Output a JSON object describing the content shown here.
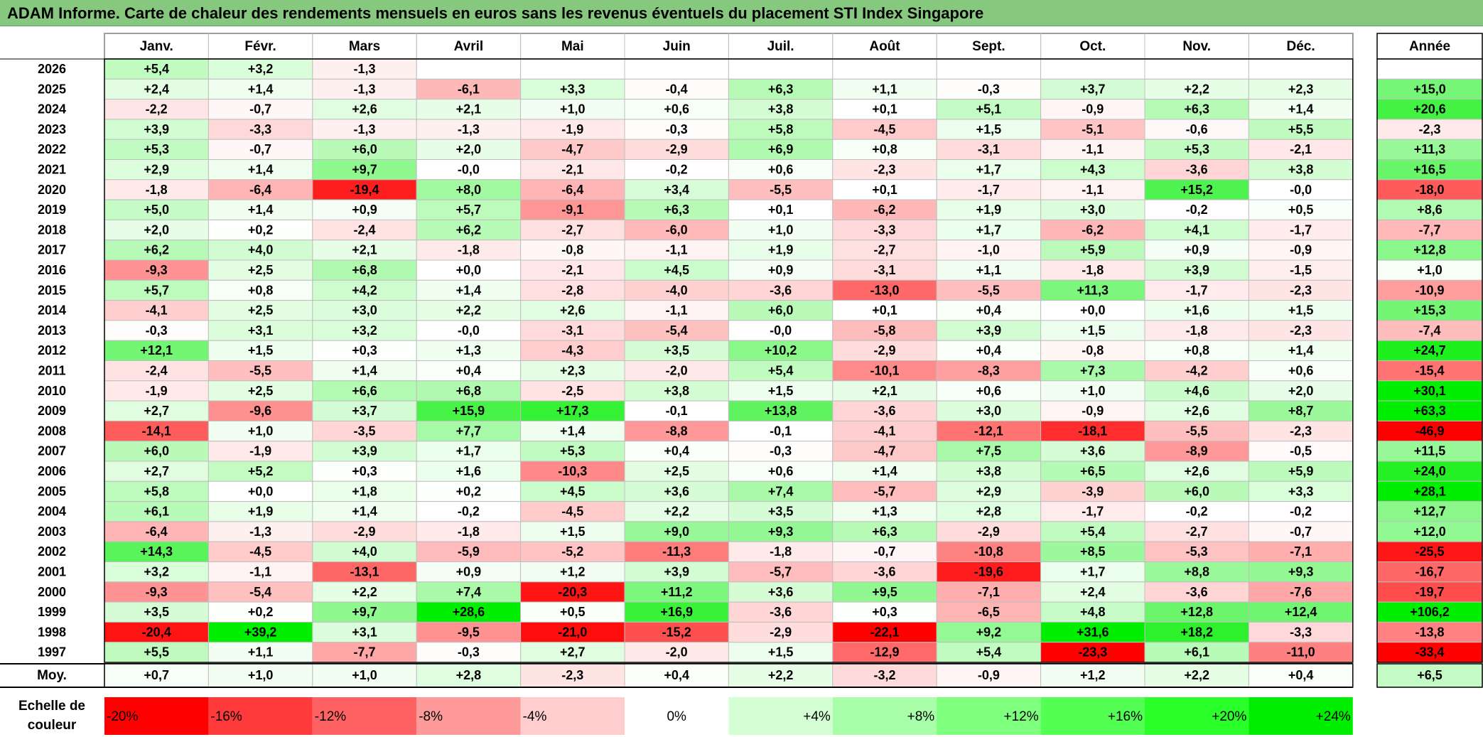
{
  "title": "ADAM Informe. Carte de chaleur des rendements mensuels en euros sans les revenus éventuels du placement STI Index Singapore",
  "chart_data": {
    "type": "heatmap",
    "title": "ADAM Informe. Carte de chaleur des rendements mensuels en euros sans les revenus éventuels du placement STI Index Singapore",
    "months": [
      "Janv.",
      "Févr.",
      "Mars",
      "Avril",
      "Mai",
      "Juin",
      "Juil.",
      "Août",
      "Sept.",
      "Oct.",
      "Nov.",
      "Déc."
    ],
    "year_header": "Année",
    "rows": [
      {
        "year": "2026",
        "values": [
          5.4,
          3.2,
          -1.3,
          null,
          null,
          null,
          null,
          null,
          null,
          null,
          null,
          null
        ],
        "annual": null
      },
      {
        "year": "2025",
        "values": [
          2.4,
          1.4,
          -1.3,
          -6.1,
          3.3,
          -0.4,
          6.3,
          1.1,
          -0.3,
          3.7,
          2.2,
          2.3
        ],
        "annual": 15.0
      },
      {
        "year": "2024",
        "values": [
          -2.2,
          -0.7,
          2.6,
          2.1,
          1.0,
          0.6,
          3.8,
          0.1,
          5.1,
          -0.9,
          6.3,
          1.4
        ],
        "annual": 20.6
      },
      {
        "year": "2023",
        "values": [
          3.9,
          -3.3,
          -1.3,
          -1.3,
          -1.9,
          -0.3,
          5.8,
          -4.5,
          1.5,
          -5.1,
          -0.6,
          5.5
        ],
        "annual": -2.3
      },
      {
        "year": "2022",
        "values": [
          5.3,
          -0.7,
          6.0,
          2.0,
          -4.7,
          -2.9,
          6.9,
          0.8,
          -3.1,
          -1.1,
          5.3,
          -2.1
        ],
        "annual": 11.3
      },
      {
        "year": "2021",
        "values": [
          2.9,
          1.4,
          9.7,
          -0.0,
          -2.1,
          -0.2,
          0.6,
          -2.3,
          1.7,
          4.3,
          -3.6,
          3.8
        ],
        "annual": 16.5
      },
      {
        "year": "2020",
        "values": [
          -1.8,
          -6.4,
          -19.4,
          8.0,
          -6.4,
          3.4,
          -5.5,
          0.1,
          -1.7,
          -1.1,
          15.2,
          -0.0
        ],
        "annual": -18.0
      },
      {
        "year": "2019",
        "values": [
          5.0,
          1.4,
          0.9,
          5.7,
          -9.1,
          6.3,
          0.1,
          -6.2,
          1.9,
          3.0,
          -0.2,
          0.5
        ],
        "annual": 8.6
      },
      {
        "year": "2018",
        "values": [
          2.0,
          0.2,
          -2.4,
          6.2,
          -2.7,
          -6.0,
          1.0,
          -3.3,
          1.7,
          -6.2,
          4.1,
          -1.7
        ],
        "annual": -7.7
      },
      {
        "year": "2017",
        "values": [
          6.2,
          4.0,
          2.1,
          -1.8,
          -0.8,
          -1.1,
          1.9,
          -2.7,
          -1.0,
          5.9,
          0.9,
          -0.9
        ],
        "annual": 12.8
      },
      {
        "year": "2016",
        "values": [
          -9.3,
          2.5,
          6.8,
          0.0,
          -2.1,
          4.5,
          0.9,
          -3.1,
          1.1,
          -1.8,
          3.9,
          -1.5
        ],
        "annual": 1.0
      },
      {
        "year": "2015",
        "values": [
          5.7,
          0.8,
          4.2,
          1.4,
          -2.8,
          -4.0,
          -3.6,
          -13.0,
          -5.5,
          11.3,
          -1.7,
          -2.3
        ],
        "annual": -10.9
      },
      {
        "year": "2014",
        "values": [
          -4.1,
          2.5,
          3.0,
          2.2,
          2.6,
          -1.1,
          6.0,
          0.1,
          0.4,
          0.0,
          1.6,
          1.5
        ],
        "annual": 15.3
      },
      {
        "year": "2013",
        "values": [
          -0.3,
          3.1,
          3.2,
          -0.0,
          -3.1,
          -5.4,
          -0.0,
          -5.8,
          3.9,
          1.5,
          -1.8,
          -2.3
        ],
        "annual": -7.4
      },
      {
        "year": "2012",
        "values": [
          12.1,
          1.5,
          0.3,
          1.3,
          -4.3,
          3.5,
          10.2,
          -2.9,
          0.4,
          -0.8,
          0.8,
          1.4
        ],
        "annual": 24.7
      },
      {
        "year": "2011",
        "values": [
          -2.4,
          -5.5,
          1.4,
          0.4,
          2.3,
          -2.0,
          5.4,
          -10.1,
          -8.3,
          7.3,
          -4.2,
          0.6
        ],
        "annual": -15.4
      },
      {
        "year": "2010",
        "values": [
          -1.9,
          2.5,
          6.6,
          6.8,
          -2.5,
          3.8,
          1.5,
          2.1,
          0.6,
          1.0,
          4.6,
          2.0
        ],
        "annual": 30.1
      },
      {
        "year": "2009",
        "values": [
          2.7,
          -9.6,
          3.7,
          15.9,
          17.3,
          -0.1,
          13.8,
          -3.6,
          3.0,
          -0.9,
          2.6,
          8.7
        ],
        "annual": 63.3
      },
      {
        "year": "2008",
        "values": [
          -14.1,
          1.0,
          -3.5,
          7.7,
          1.4,
          -8.8,
          -0.1,
          -4.1,
          -12.1,
          -18.1,
          -5.5,
          -2.3
        ],
        "annual": -46.9
      },
      {
        "year": "2007",
        "values": [
          6.0,
          -1.9,
          3.9,
          1.7,
          5.3,
          0.4,
          -0.3,
          -4.7,
          7.5,
          3.6,
          -8.9,
          -0.5
        ],
        "annual": 11.5
      },
      {
        "year": "2006",
        "values": [
          2.7,
          5.2,
          0.3,
          1.6,
          -10.3,
          2.5,
          0.6,
          1.4,
          3.8,
          6.5,
          2.6,
          5.9
        ],
        "annual": 24.0
      },
      {
        "year": "2005",
        "values": [
          5.8,
          0.0,
          1.8,
          0.2,
          4.5,
          3.6,
          7.4,
          -5.7,
          2.9,
          -3.9,
          6.0,
          3.3
        ],
        "annual": 28.1
      },
      {
        "year": "2004",
        "values": [
          6.1,
          1.9,
          1.4,
          -0.2,
          -4.5,
          2.2,
          3.5,
          1.3,
          2.8,
          -1.7,
          -0.2,
          -0.2
        ],
        "annual": 12.7
      },
      {
        "year": "2003",
        "values": [
          -6.4,
          -1.3,
          -2.9,
          -1.8,
          1.5,
          9.0,
          9.3,
          6.3,
          -2.9,
          5.4,
          -2.7,
          -0.7
        ],
        "annual": 12.0
      },
      {
        "year": "2002",
        "values": [
          14.3,
          -4.5,
          4.0,
          -5.9,
          -5.2,
          -11.3,
          -1.8,
          -0.7,
          -10.8,
          8.5,
          -5.3,
          -7.1
        ],
        "annual": -25.5
      },
      {
        "year": "2001",
        "values": [
          3.2,
          -1.1,
          -13.1,
          0.9,
          1.2,
          3.9,
          -5.7,
          -3.6,
          -19.6,
          1.7,
          8.8,
          9.3
        ],
        "annual": -16.7
      },
      {
        "year": "2000",
        "values": [
          -9.3,
          -5.4,
          2.2,
          7.4,
          -20.3,
          11.2,
          3.6,
          9.5,
          -7.1,
          2.4,
          -3.6,
          -7.6
        ],
        "annual": -19.7
      },
      {
        "year": "1999",
        "values": [
          3.5,
          0.2,
          9.7,
          28.6,
          0.5,
          16.9,
          -3.6,
          0.3,
          -6.5,
          4.8,
          12.8,
          12.4
        ],
        "annual": 106.2
      },
      {
        "year": "1998",
        "values": [
          -20.4,
          39.2,
          3.1,
          -9.5,
          -21.0,
          -15.2,
          -2.9,
          -22.1,
          9.2,
          31.6,
          18.2,
          -3.3
        ],
        "annual": -13.8
      },
      {
        "year": "1997",
        "values": [
          5.5,
          1.1,
          -7.7,
          -0.3,
          2.7,
          -2.0,
          1.5,
          -12.9,
          5.4,
          -23.3,
          6.1,
          -11.0
        ],
        "annual": -33.4
      }
    ],
    "average": {
      "label": "Moy.",
      "values": [
        0.7,
        1.0,
        1.0,
        2.8,
        -2.3,
        0.4,
        2.2,
        -3.2,
        -0.9,
        1.2,
        2.2,
        0.4
      ],
      "annual": 6.5
    },
    "color_scale": {
      "label_line1": "Echelle de",
      "label_line2": "couleur",
      "steps": [
        {
          "label": "-20%",
          "value": -20,
          "color": "#ff0000"
        },
        {
          "label": "-16%",
          "value": -16,
          "color": "#ff3a3a"
        },
        {
          "label": "-12%",
          "value": -12,
          "color": "#ff6262"
        },
        {
          "label": "-8%",
          "value": -8,
          "color": "#ff9a9a"
        },
        {
          "label": "-4%",
          "value": -4,
          "color": "#ffcdcd"
        },
        {
          "label": "0%",
          "value": 0,
          "color": "#ffffff"
        },
        {
          "label": "+4%",
          "value": 4,
          "color": "#d4ffd4"
        },
        {
          "label": "+8%",
          "value": 8,
          "color": "#a9ffa9"
        },
        {
          "label": "+12%",
          "value": 12,
          "color": "#7eff7e"
        },
        {
          "label": "+16%",
          "value": 16,
          "color": "#54ff54"
        },
        {
          "label": "+20%",
          "value": 20,
          "color": "#2aff2a"
        },
        {
          "label": "+24%",
          "value": 24,
          "color": "#00ee00"
        }
      ]
    }
  }
}
